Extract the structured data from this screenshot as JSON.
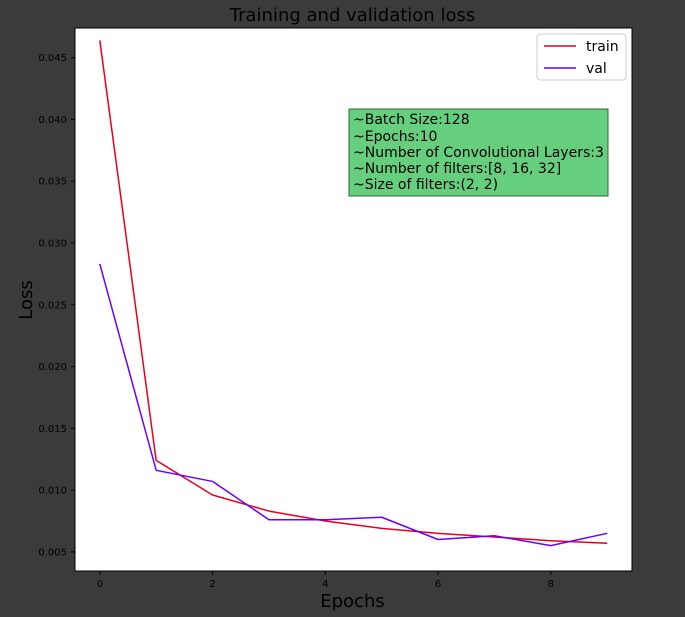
{
  "chart_data": {
    "type": "line",
    "title": "Training and validation loss",
    "xlabel": "Epochs",
    "ylabel": "Loss",
    "xlim": [
      -0.44,
      9.44
    ],
    "ylim": [
      0.00345,
      0.0474
    ],
    "xticks": [
      0,
      2,
      4,
      6,
      8
    ],
    "yticks": [
      0.005,
      0.01,
      0.015,
      0.02,
      0.025,
      0.03,
      0.035,
      0.04,
      0.045
    ],
    "xtick_labels": [
      "0",
      "2",
      "4",
      "6",
      "8"
    ],
    "ytick_labels": [
      "0.005",
      "0.010",
      "0.015",
      "0.020",
      "0.025",
      "0.030",
      "0.035",
      "0.040",
      "0.045"
    ],
    "x": [
      0,
      1,
      2,
      3,
      4,
      5,
      6,
      7,
      8,
      9
    ],
    "series": [
      {
        "name": "train",
        "color": "#e8001c",
        "values": [
          0.0464,
          0.0124,
          0.0096,
          0.0083,
          0.0075,
          0.0069,
          0.0065,
          0.0062,
          0.0059,
          0.0057
        ]
      },
      {
        "name": "val",
        "color": "#6a00ff",
        "values": [
          0.0283,
          0.0116,
          0.0107,
          0.0076,
          0.0076,
          0.0078,
          0.006,
          0.0063,
          0.0055,
          0.0065
        ]
      }
    ],
    "legend_position": "top-right",
    "grid": false,
    "annotation": {
      "background": "#66cf7d",
      "lines": [
        "~Batch Size:128",
        "~Epochs:10",
        "~Number of Convolutional Layers:3",
        "~Number of filters:[8, 16, 32]",
        "~Size of filters:(2, 2)"
      ]
    }
  }
}
